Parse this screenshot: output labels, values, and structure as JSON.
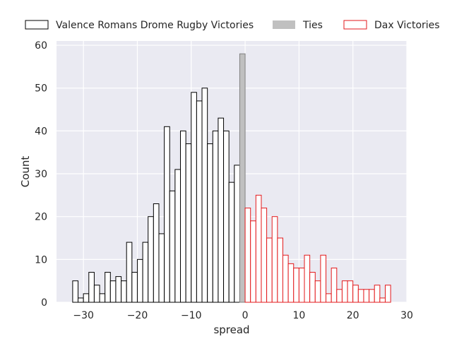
{
  "chart_data": {
    "type": "bar",
    "title": "",
    "xlabel": "spread",
    "ylabel": "Count",
    "xlim": [
      -35,
      30
    ],
    "ylim": [
      0,
      61
    ],
    "x_ticks": [
      -30,
      -20,
      -10,
      0,
      10,
      20,
      30
    ],
    "y_ticks": [
      0,
      10,
      20,
      30,
      40,
      50,
      60
    ],
    "grid": true,
    "legend": "top",
    "bin_width": 1,
    "series": [
      {
        "name": "Valence Romans Drome Rugby Victories",
        "edge_color": "#000000",
        "fill_color": "#ffffff",
        "x": [
          -31,
          -30,
          -29,
          -28,
          -27,
          -26,
          -25,
          -24,
          -23,
          -22,
          -21,
          -20,
          -19,
          -18,
          -17,
          -16,
          -15,
          -14,
          -13,
          -12,
          -11,
          -10,
          -9,
          -8,
          -7,
          -6,
          -5,
          -4,
          -3,
          -2,
          -1
        ],
        "values": [
          5,
          1,
          2,
          7,
          4,
          2,
          7,
          5,
          6,
          5,
          14,
          7,
          10,
          14,
          20,
          23,
          16,
          41,
          26,
          31,
          40,
          37,
          49,
          47,
          50,
          37,
          40,
          43,
          40,
          28,
          32
        ]
      },
      {
        "name": "Ties",
        "edge_color": "#808080",
        "fill_color": "#c0c0c0",
        "x": [
          0
        ],
        "values": [
          58
        ]
      },
      {
        "name": "Dax Victories",
        "edge_color": "#e31a1c",
        "fill_color": "#ffffff",
        "x": [
          1,
          2,
          3,
          4,
          5,
          6,
          7,
          8,
          9,
          10,
          11,
          12,
          13,
          14,
          15,
          16,
          17,
          18,
          19,
          20,
          21,
          22,
          23,
          24,
          25,
          26,
          27
        ],
        "values": [
          22,
          19,
          25,
          22,
          15,
          20,
          15,
          11,
          9,
          8,
          8,
          11,
          7,
          5,
          11,
          2,
          8,
          3,
          5,
          5,
          4,
          3,
          3,
          3,
          4,
          1,
          4
        ]
      }
    ]
  },
  "colors": {
    "plot_background": "#eaeaf2",
    "grid": "#ffffff",
    "text": "#262626"
  }
}
